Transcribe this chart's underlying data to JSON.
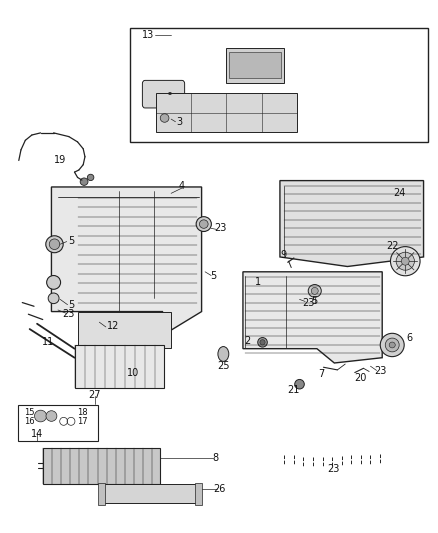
{
  "bg_color": "#ffffff",
  "line_color": "#222222",
  "label_color": "#111111",
  "fig_width": 4.38,
  "fig_height": 5.33,
  "dpi": 100
}
